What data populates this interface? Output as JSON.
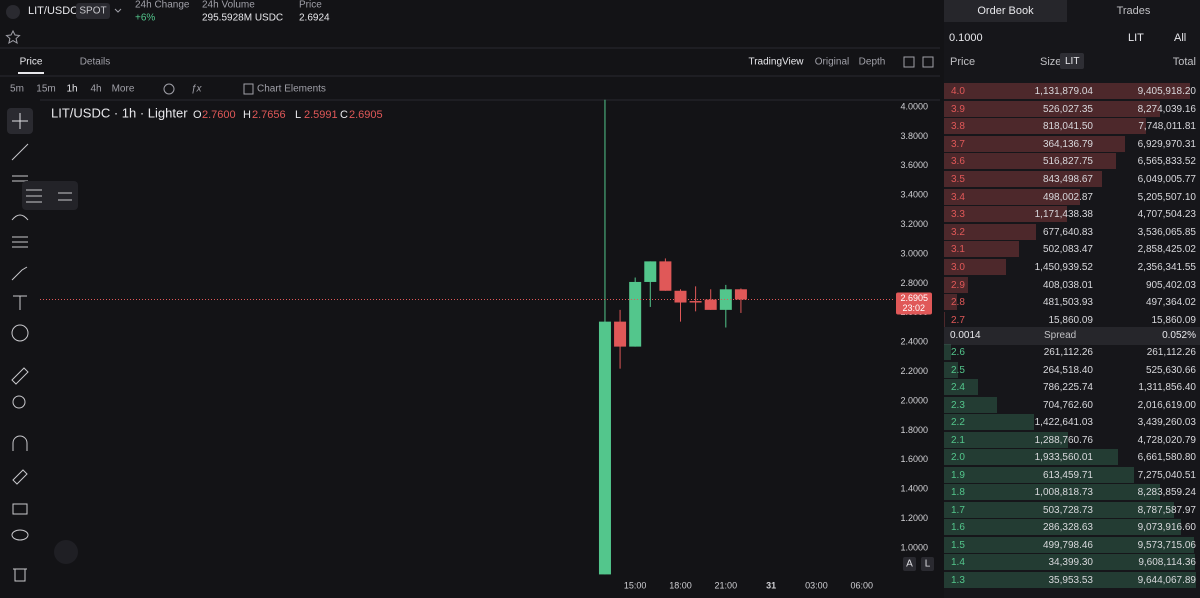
{
  "header": {
    "pair": "LIT/USDC",
    "market": "SPOT",
    "stats": [
      {
        "label": "24h Change",
        "value": "+6%"
      },
      {
        "label": "24h Volume",
        "value": "295.5928M USDC"
      },
      {
        "label": "Price",
        "value": "2.6924"
      }
    ]
  },
  "chart_tabs": [
    "Price",
    "Details"
  ],
  "chart_views": [
    "TradingView",
    "Original",
    "Depth"
  ],
  "intervals": [
    "5m",
    "15m",
    "1h",
    "4h",
    "More"
  ],
  "chart_elements": "Chart Elements",
  "chart": {
    "type": "candlestick",
    "title": "LIT/USDC · 1h · Lighter",
    "legend": [
      {
        "key": "O",
        "value": "2.7600"
      },
      {
        "key": "H",
        "value": "2.7656"
      },
      {
        "key": "L",
        "value": "2.5991"
      },
      {
        "key": "C",
        "value": "2.6905"
      }
    ],
    "x": [
      13,
      14,
      15,
      16,
      17,
      18,
      19,
      20,
      21,
      22
    ],
    "open": [
      0.82,
      2.54,
      2.37,
      2.81,
      2.95,
      2.75,
      2.68,
      2.69,
      2.62,
      2.76
    ],
    "high": [
      4.05,
      2.62,
      2.84,
      2.95,
      2.97,
      2.76,
      2.78,
      2.76,
      2.79,
      2.7656
    ],
    "low": [
      0.82,
      2.22,
      2.37,
      2.64,
      2.75,
      2.54,
      2.61,
      2.62,
      2.5,
      2.5991
    ],
    "close": [
      2.54,
      2.37,
      2.81,
      2.95,
      2.75,
      2.67,
      2.67,
      2.62,
      2.76,
      2.6905
    ],
    "up_color": "#53c68c",
    "down_color": "#e05858",
    "xlim": [
      -24.4,
      32.2
    ],
    "xticks": [
      {
        "value": 15,
        "label": "15:00"
      },
      {
        "value": 18,
        "label": "18:00"
      },
      {
        "value": 21,
        "label": "21:00"
      },
      {
        "value": 24,
        "label": "31"
      },
      {
        "value": 27,
        "label": "03:00"
      },
      {
        "value": 30,
        "label": "06:00"
      }
    ],
    "ylim": [
      0.782,
      4.048
    ],
    "yticks": [
      {
        "value": 1,
        "label": "1.0000"
      },
      {
        "value": 1.2,
        "label": "1.2000"
      },
      {
        "value": 1.4,
        "label": "1.4000"
      },
      {
        "value": 1.6,
        "label": "1.6000"
      },
      {
        "value": 1.8,
        "label": "1.8000"
      },
      {
        "value": 2,
        "label": "2.0000"
      },
      {
        "value": 2.2,
        "label": "2.2000"
      },
      {
        "value": 2.4,
        "label": "2.4000"
      },
      {
        "value": 2.6,
        "label": "2.6000"
      },
      {
        "value": 2.8,
        "label": "2.8000"
      },
      {
        "value": 3,
        "label": "3.0000"
      },
      {
        "value": 3.2,
        "label": "3.2000"
      },
      {
        "value": 3.4,
        "label": "3.4000"
      },
      {
        "value": 3.6,
        "label": "3.6000"
      },
      {
        "value": 3.8,
        "label": "3.8000"
      },
      {
        "value": 4,
        "label": "4.0000"
      }
    ],
    "last_price": 2.6905,
    "countdown": "23:02"
  },
  "scale_buttons": [
    "A",
    "L"
  ],
  "order_book": {
    "tabs": [
      "Order Book",
      "Trades"
    ],
    "tick_size": "0.1000",
    "asset": "LIT",
    "filter": "All",
    "columns": [
      "Price",
      "Size",
      "Total"
    ],
    "size_unit": "LIT",
    "asks": [
      [
        "4.0",
        "1,131,879.04",
        "9,405,918.20"
      ],
      [
        "3.9",
        "526,027.35",
        "8,274,039.16"
      ],
      [
        "3.8",
        "818,041.50",
        "7,748,011.81"
      ],
      [
        "3.7",
        "364,136.79",
        "6,929,970.31"
      ],
      [
        "3.6",
        "516,827.75",
        "6,565,833.52"
      ],
      [
        "3.5",
        "843,498.67",
        "6,049,005.77"
      ],
      [
        "3.4",
        "498,002.87",
        "5,205,507.10"
      ],
      [
        "3.3",
        "1,171,438.38",
        "4,707,504.23"
      ],
      [
        "3.2",
        "677,640.83",
        "3,536,065.85"
      ],
      [
        "3.1",
        "502,083.47",
        "2,858,425.02"
      ],
      [
        "3.0",
        "1,450,939.52",
        "2,356,341.55"
      ],
      [
        "2.9",
        "408,038.01",
        "905,402.03"
      ],
      [
        "2.8",
        "481,503.93",
        "497,364.02"
      ],
      [
        "2.7",
        "15,860.09",
        "15,860.09"
      ]
    ],
    "spread": [
      "0.0014",
      "Spread",
      "0.052%"
    ],
    "bids": [
      [
        "2.6",
        "261,112.26",
        "261,112.26"
      ],
      [
        "2.5",
        "264,518.40",
        "525,630.66"
      ],
      [
        "2.4",
        "786,225.74",
        "1,311,856.40"
      ],
      [
        "2.3",
        "704,762.60",
        "2,016,619.00"
      ],
      [
        "2.2",
        "1,422,641.03",
        "3,439,260.03"
      ],
      [
        "2.1",
        "1,288,760.76",
        "4,728,020.79"
      ],
      [
        "2.0",
        "1,933,560.01",
        "6,661,580.80"
      ],
      [
        "1.9",
        "613,459.71",
        "7,275,040.51"
      ],
      [
        "1.8",
        "1,008,818.73",
        "8,283,859.24"
      ],
      [
        "1.7",
        "503,728.73",
        "8,787,587.97"
      ],
      [
        "1.6",
        "286,328.63",
        "9,073,916.60"
      ],
      [
        "1.5",
        "499,798.46",
        "9,573,715.06"
      ],
      [
        "1.4",
        "34,399.30",
        "9,608,114.36"
      ],
      [
        "1.3",
        "35,953.53",
        "9,644,067.89"
      ]
    ]
  }
}
